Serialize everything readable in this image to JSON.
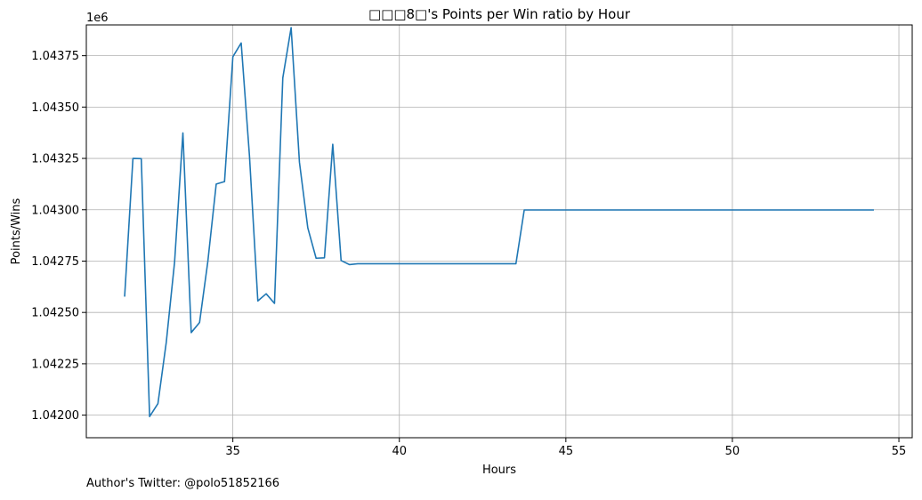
{
  "chart_data": {
    "type": "line",
    "title": "□□□8□'s Points per Win ratio by Hour",
    "xlabel": "Hours",
    "ylabel": "Points/Wins",
    "y_offset_label": "1e6",
    "xlim": [
      30.6,
      55.4
    ],
    "ylim": [
      1.04189,
      1.0439
    ],
    "x_ticks": [
      35,
      40,
      45,
      50,
      55
    ],
    "y_ticks": [
      1.042,
      1.04225,
      1.0425,
      1.04275,
      1.043,
      1.04325,
      1.0435,
      1.04375
    ],
    "y_tick_labels": [
      "1.04200",
      "1.04225",
      "1.04250",
      "1.04275",
      "1.04300",
      "1.04325",
      "1.04350",
      "1.04375"
    ],
    "grid": true,
    "line_color": "#1f77b4",
    "series": [
      {
        "x": [
          31.75,
          32.0,
          32.25,
          32.5,
          32.75,
          33.0,
          33.25,
          33.5,
          33.75,
          34.0,
          34.25,
          34.5,
          34.75,
          35.0,
          35.25,
          35.5,
          35.75,
          36.0,
          36.25,
          36.5,
          36.75,
          37.0,
          37.25,
          37.5,
          37.75,
          38.0,
          38.25,
          38.5,
          38.75,
          39.0,
          39.5,
          40.0,
          41.0,
          42.0,
          43.0,
          43.5,
          43.75,
          44.0,
          45.0,
          46.0,
          47.0,
          48.0,
          49.0,
          50.0,
          51.0,
          52.0,
          53.0,
          54.0,
          54.25
        ],
        "values": [
          1.042577,
          1.04325,
          1.043249,
          1.041993,
          1.042056,
          1.042354,
          1.042745,
          1.043374,
          1.042402,
          1.042451,
          1.04275,
          1.043125,
          1.043137,
          1.043745,
          1.043812,
          1.04326,
          1.042556,
          1.042591,
          1.042544,
          1.043642,
          1.043887,
          1.043231,
          1.042912,
          1.042764,
          1.042766,
          1.043319,
          1.042753,
          1.042733,
          1.042737,
          1.042737,
          1.042737,
          1.042737,
          1.042737,
          1.042737,
          1.042737,
          1.042737,
          1.042999,
          1.042999,
          1.042999,
          1.042999,
          1.042999,
          1.042999,
          1.042999,
          1.042999,
          1.042999,
          1.042999,
          1.042999,
          1.042999,
          1.042999
        ]
      }
    ]
  },
  "footer_text": "Author's Twitter: @polo51852166"
}
